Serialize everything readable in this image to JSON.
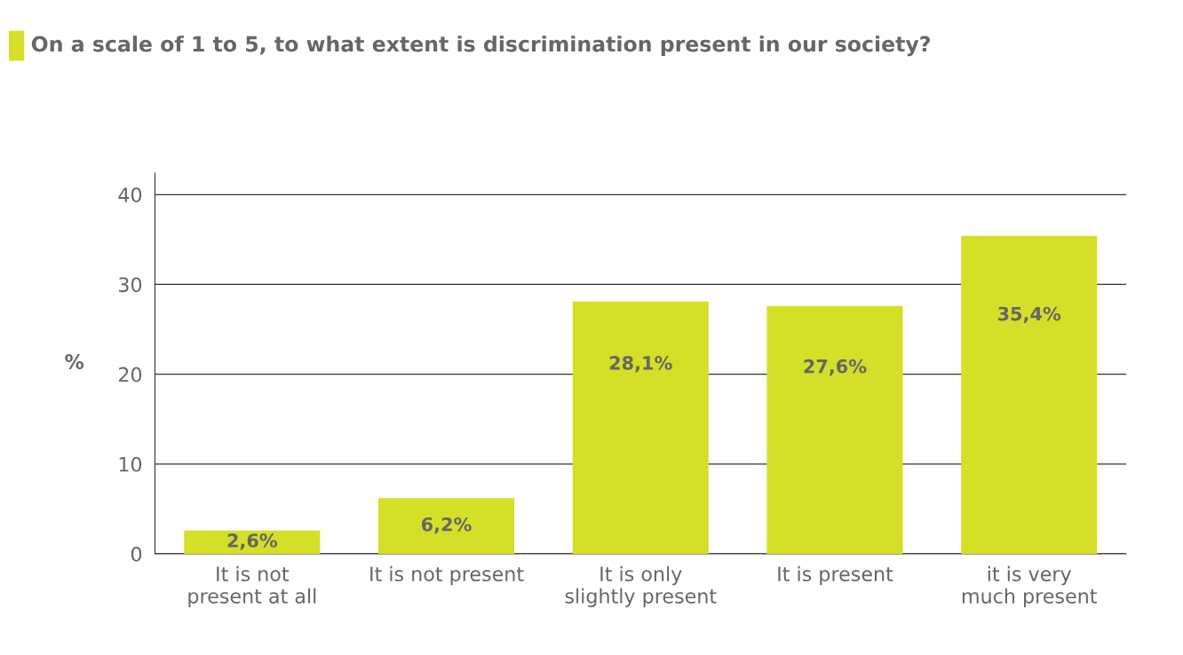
{
  "chart_data": {
    "type": "bar",
    "title": "On a scale of 1 to 5, to what extent is discrimination present in our society?",
    "ylabel": "%",
    "categories": [
      "It is not\npresent at all",
      "It is not present",
      "It is only\nslightly present",
      "It is present",
      "it is very\nmuch present"
    ],
    "values": [
      2.6,
      6.2,
      28.1,
      27.6,
      35.4
    ],
    "value_labels": [
      "2,6%",
      "6,2%",
      "28,1%",
      "27,6%",
      "35,4%"
    ],
    "color": "#d5df27",
    "ylim": [
      0,
      42.4
    ],
    "yticks": [
      0,
      10,
      20,
      30,
      40
    ],
    "grid": "y",
    "legend": false
  }
}
